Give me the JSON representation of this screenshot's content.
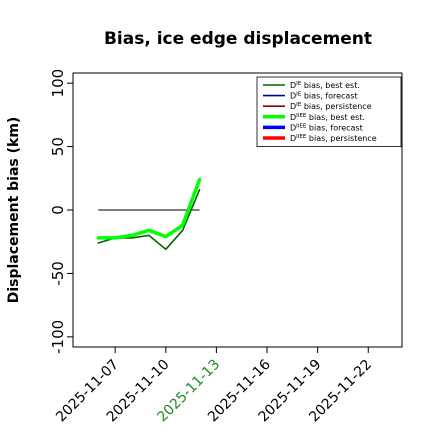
{
  "chart_data": {
    "type": "line",
    "title": "Bias, ice edge displacement",
    "xlabel": "",
    "ylabel": "Displacement bias (km)",
    "ylim": [
      -108,
      108
    ],
    "xlim": [
      "2025-11-04T12:00",
      "2025-11-24T00:00"
    ],
    "y_ticks": [
      -100,
      -50,
      0,
      50,
      100
    ],
    "x_ticks": [
      {
        "date": "2025-11-07",
        "label": "2025-11-07",
        "color": "#000000"
      },
      {
        "date": "2025-11-10",
        "label": "2025-11-10",
        "color": "#000000"
      },
      {
        "date": "2025-11-13",
        "label": "2025-11-13",
        "color": "#228b22"
      },
      {
        "date": "2025-11-16",
        "label": "2025-11-16",
        "color": "#000000"
      },
      {
        "date": "2025-11-19",
        "label": "2025-11-19",
        "color": "#000000"
      },
      {
        "date": "2025-11-22",
        "label": "2025-11-22",
        "color": "#000000"
      }
    ],
    "grid": false,
    "legend_position": "top-right",
    "series": [
      {
        "sym": "D",
        "sup": "IE",
        "rest": " bias, best est.",
        "color": "#006400",
        "width": 1.6,
        "points": [
          [
            "2025-11-06",
            -26
          ],
          [
            "2025-11-07",
            -22
          ],
          [
            "2025-11-08",
            -22
          ],
          [
            "2025-11-09",
            -20
          ],
          [
            "2025-11-10",
            -31
          ],
          [
            "2025-11-11",
            -16
          ],
          [
            "2025-11-12",
            16
          ]
        ]
      },
      {
        "sym": "D",
        "sup": "IE",
        "rest": " bias, forecast",
        "color": "#00008b",
        "width": 1.6,
        "points": []
      },
      {
        "sym": "D",
        "sup": "IE",
        "rest": " bias, persistence",
        "color": "#8b0000",
        "width": 1.6,
        "points": []
      },
      {
        "sym": "D",
        "sup": "IIEE",
        "rest": " bias, best est.",
        "color": "#00ff00",
        "width": 3.5,
        "points": [
          [
            "2025-11-06",
            -22
          ],
          [
            "2025-11-07",
            -22
          ],
          [
            "2025-11-08",
            -20
          ],
          [
            "2025-11-09",
            -16
          ],
          [
            "2025-11-10",
            -21
          ],
          [
            "2025-11-11",
            -12
          ],
          [
            "2025-11-12",
            24
          ]
        ]
      },
      {
        "sym": "D",
        "sup": "IIEE",
        "rest": " bias, forecast",
        "color": "#0000ff",
        "width": 3.5,
        "points": []
      },
      {
        "sym": "D",
        "sup": "IIEE",
        "rest": " bias, persistence",
        "color": "#ff0000",
        "width": 3.5,
        "points": []
      }
    ],
    "reference_line": {
      "y": 0,
      "x_from": "2025-11-06",
      "x_to": "2025-11-12",
      "color": "#555555"
    }
  }
}
